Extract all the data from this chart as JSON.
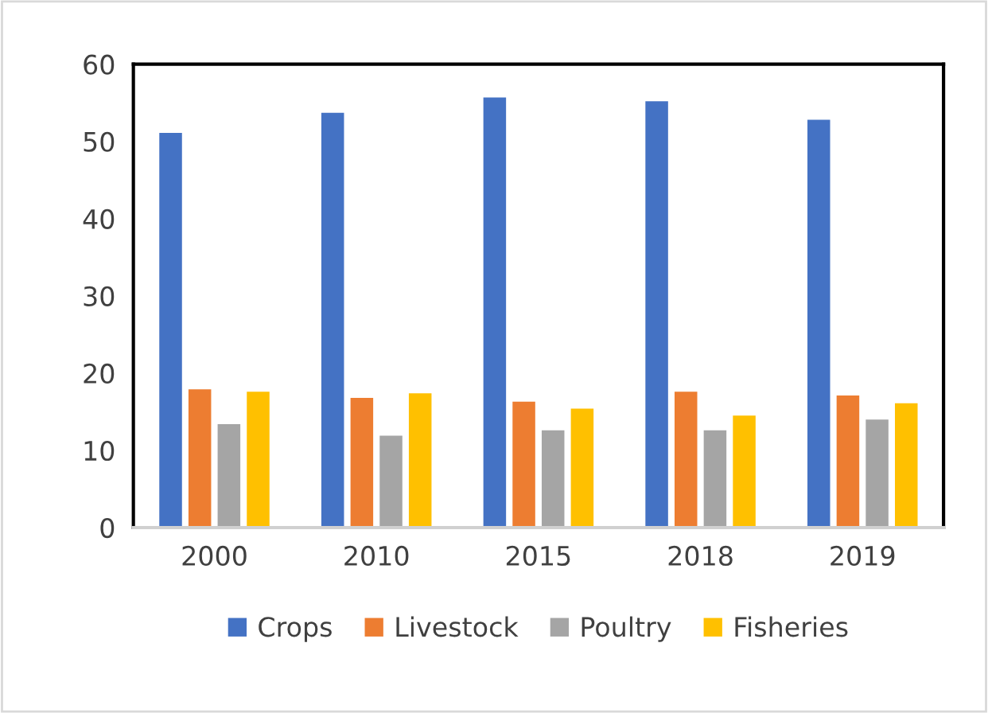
{
  "chart_data": {
    "type": "bar",
    "categories": [
      "2000",
      "2010",
      "2015",
      "2018",
      "2019"
    ],
    "series": [
      {
        "name": "Crops",
        "color": "#4472c4",
        "values": [
          51.1,
          53.7,
          55.7,
          55.2,
          52.8
        ]
      },
      {
        "name": "Livestock",
        "color": "#ed7d31",
        "values": [
          17.9,
          16.8,
          16.3,
          17.6,
          17.1
        ]
      },
      {
        "name": "Poultry",
        "color": "#a5a5a5",
        "values": [
          13.4,
          11.9,
          12.6,
          12.6,
          14.0
        ]
      },
      {
        "name": "Fisheries",
        "color": "#ffc000",
        "values": [
          17.6,
          17.4,
          15.4,
          14.5,
          16.1
        ]
      }
    ],
    "ylim": [
      0,
      60
    ],
    "yticks": [
      0,
      10,
      20,
      30,
      40,
      50,
      60
    ],
    "grid": false,
    "legend": "bottom"
  }
}
